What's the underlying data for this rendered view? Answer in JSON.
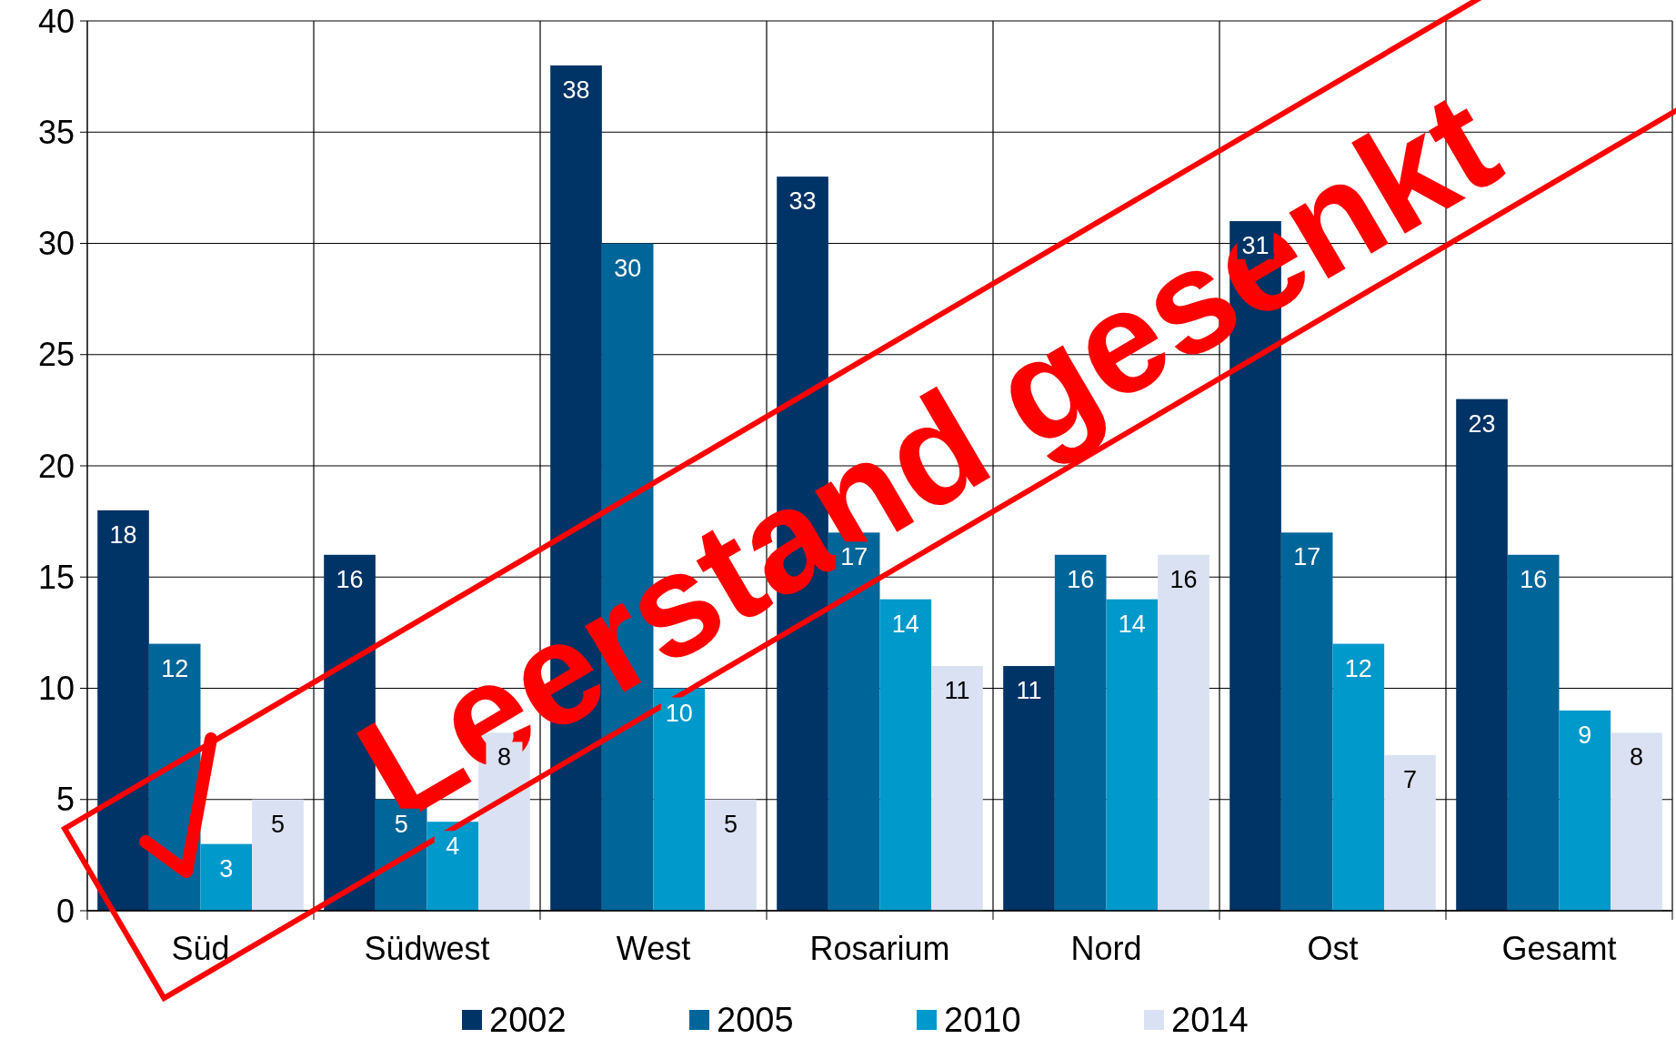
{
  "chart_data": {
    "type": "bar",
    "categories": [
      "Süd",
      "Südwest",
      "West",
      "Rosarium",
      "Nord",
      "Ost",
      "Gesamt"
    ],
    "series": [
      {
        "name": "2002",
        "color": "#003366",
        "values": [
          18,
          16,
          38,
          33,
          11,
          31,
          23
        ]
      },
      {
        "name": "2005",
        "color": "#006699",
        "values": [
          12,
          5,
          30,
          17,
          16,
          17,
          16
        ]
      },
      {
        "name": "2010",
        "color": "#0099cc",
        "values": [
          3,
          4,
          10,
          14,
          14,
          12,
          9
        ]
      },
      {
        "name": "2014",
        "color": "#d9e1f2",
        "values": [
          5,
          8,
          5,
          11,
          16,
          7,
          8
        ]
      }
    ],
    "ylim": [
      0,
      40
    ],
    "yticks": [
      0,
      5,
      10,
      15,
      20,
      25,
      30,
      35,
      40
    ],
    "grid": true,
    "legend": "bottom",
    "data_labels": true,
    "annotations": [
      "Leerstand gesenkt"
    ]
  }
}
